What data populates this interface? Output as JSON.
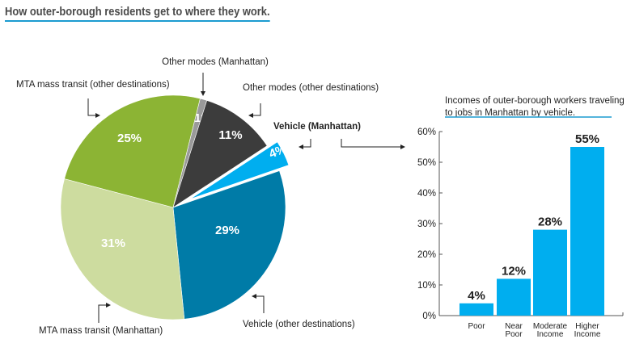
{
  "title": "How outer-borough residents get to where they work.",
  "colors": {
    "accent": "#1b9bd0",
    "bar": "#00aeef"
  },
  "chart_data": [
    {
      "type": "pie",
      "slices": [
        {
          "label": "Other modes (Manhattan)",
          "value": 1,
          "display": "1%",
          "color": "#9a9a9a"
        },
        {
          "label": "Other modes (other destinations)",
          "value": 11,
          "display": "11%",
          "color": "#3c3c3c"
        },
        {
          "label": "Vehicle (Manhattan)",
          "value": 4,
          "display": "4%",
          "color": "#00aeef",
          "exploded": true
        },
        {
          "label": "Vehicle (other destinations)",
          "value": 29,
          "display": "29%",
          "color": "#007ba7"
        },
        {
          "label": "MTA mass transit (Manhattan)",
          "value": 31,
          "display": "31%",
          "color": "#cddc9f"
        },
        {
          "label": "MTA mass transit (other destinations)",
          "value": 25,
          "display": "25%",
          "color": "#8cb434"
        }
      ]
    },
    {
      "type": "bar",
      "title": "Incomes of outer-borough workers traveling to jobs in Manhattan by vehicle.",
      "title_lines": [
        "Incomes of outer-borough workers traveling",
        "to jobs in Manhattan by vehicle."
      ],
      "categories": [
        [
          "Poor"
        ],
        [
          "Near",
          "Poor"
        ],
        [
          "Moderate",
          "Income"
        ],
        [
          "Higher",
          "Income"
        ]
      ],
      "values": [
        4,
        12,
        28,
        55
      ],
      "data_labels": [
        "4%",
        "12%",
        "28%",
        "55%"
      ],
      "ylim": [
        0,
        60
      ],
      "yticks": [
        "0%",
        "10%",
        "20%",
        "30%",
        "40%",
        "50%",
        "60%"
      ],
      "grid": false
    }
  ]
}
